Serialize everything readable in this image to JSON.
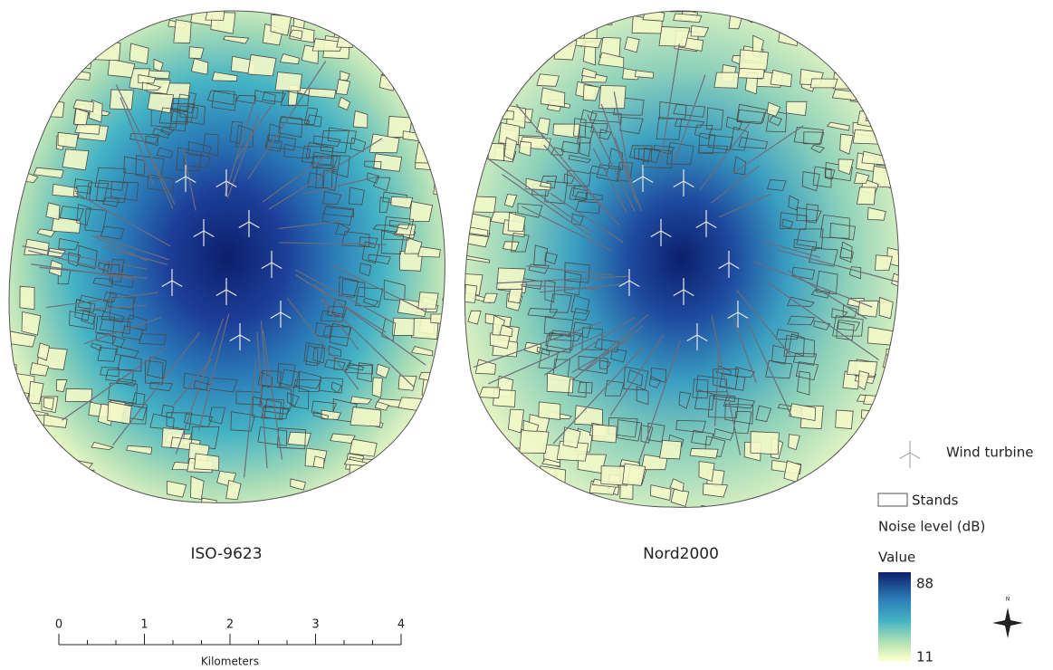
{
  "maps": [
    {
      "title": "ISO-9623"
    },
    {
      "title": "Nord2000"
    }
  ],
  "legend": {
    "wind_turbine": "Wind turbine",
    "stands": "Stands",
    "noise_title": "Noise level (dB)",
    "value_title": "Value",
    "max": 88,
    "min": 11
  },
  "scale_bar": {
    "ticks": [
      0,
      1,
      2,
      3,
      4
    ],
    "unit": "Kilometers"
  },
  "north": "N"
}
